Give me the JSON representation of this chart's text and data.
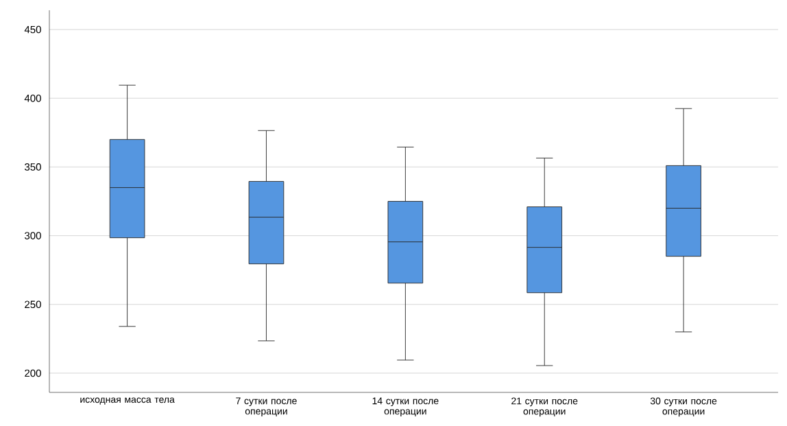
{
  "chart_data": {
    "type": "box",
    "categories": [
      "исходная масса тела",
      "7 сутки после операции",
      "14 сутки после операции",
      "21 сутки после операции",
      "30 сутки после операции"
    ],
    "boxes": [
      {
        "low": 234,
        "q1": 298.5,
        "median": 335,
        "q3": 370,
        "high": 409.5
      },
      {
        "low": 223.5,
        "q1": 279.5,
        "median": 313.5,
        "q3": 339.5,
        "high": 376.5
      },
      {
        "low": 209.5,
        "q1": 265.5,
        "median": 295.5,
        "q3": 325,
        "high": 364.5
      },
      {
        "low": 205.5,
        "q1": 258.5,
        "median": 291.5,
        "q3": 321,
        "high": 356.5
      },
      {
        "low": 230,
        "q1": 285,
        "median": 320,
        "q3": 351,
        "high": 392.5
      }
    ],
    "color": "#5596e0",
    "ylim": [
      186,
      464
    ],
    "yticks": [
      200,
      250,
      300,
      350,
      400,
      450
    ],
    "grid": "y"
  }
}
